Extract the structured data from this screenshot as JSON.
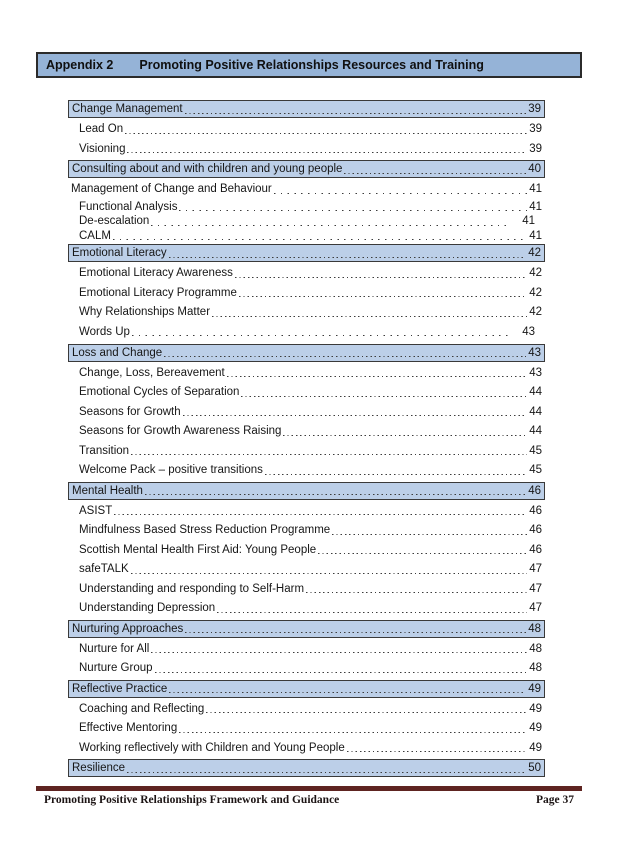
{
  "colors": {
    "header_fill": "#95B3D7",
    "row_highlight_fill": "#BCCFE8",
    "box_border": "#3a3a3a",
    "footer_rule": "#5E2421",
    "text": "#161616"
  },
  "header": {
    "label": "Appendix 2",
    "title": "Promoting Positive Relationships Resources and Training"
  },
  "toc": [
    {
      "text": "Change Management",
      "page": "39",
      "level": 1,
      "highlighted": true
    },
    {
      "text": "Lead On",
      "page": "39",
      "level": 2
    },
    {
      "text": "Visioning",
      "page": "39",
      "level": 2
    },
    {
      "text": "Consulting about and with children and young people",
      "page": "40",
      "level": 1,
      "highlighted": true
    },
    {
      "text": "Management of Change and Behaviour",
      "page": "41",
      "level": 1,
      "leader": "spaced"
    },
    {
      "text": "Functional Analysis",
      "page": "41",
      "level": 2,
      "leader": "spaced",
      "tight": true
    },
    {
      "text": "De-escalation",
      "page": "41",
      "level": 2,
      "leader": "spaced",
      "tight": true,
      "num_offset": true
    },
    {
      "text": "CALM",
      "page": "41",
      "level": 2,
      "leader": "spaced",
      "tight": true
    },
    {
      "text": "Emotional Literacy",
      "page": "42",
      "level": 1,
      "highlighted": true
    },
    {
      "text": "Emotional Literacy Awareness",
      "page": "42",
      "level": 2
    },
    {
      "text": "Emotional Literacy Programme",
      "page": "42",
      "level": 2
    },
    {
      "text": "Why Relationships Matter",
      "page": "42",
      "level": 2
    },
    {
      "text": "Words Up",
      "page": "43",
      "level": 2,
      "leader": "spaced",
      "num_offset": true
    },
    {
      "text": "Loss and Change",
      "page": "43",
      "level": 1,
      "highlighted": true,
      "gap_before": true
    },
    {
      "text": "Change, Loss, Bereavement",
      "page": "43",
      "level": 2
    },
    {
      "text": "Emotional Cycles of Separation",
      "page": "44",
      "level": 2
    },
    {
      "text": "Seasons for Growth",
      "page": "44",
      "level": 2
    },
    {
      "text": "Seasons for Growth Awareness Raising",
      "page": "44",
      "level": 2
    },
    {
      "text": "Transition",
      "page": "45",
      "level": 2
    },
    {
      "text": "Welcome Pack – positive transitions",
      "page": "45",
      "level": 2
    },
    {
      "text": "Mental Health",
      "page": "46",
      "level": 1,
      "highlighted": true
    },
    {
      "text": "ASIST",
      "page": "46",
      "level": 2
    },
    {
      "text": "Mindfulness Based Stress Reduction Programme",
      "page": "46",
      "level": 2
    },
    {
      "text": "Scottish Mental Health First Aid: Young People",
      "page": "46",
      "level": 2
    },
    {
      "text": "safeTALK",
      "page": "47",
      "level": 2
    },
    {
      "text": "Understanding and responding to Self-Harm",
      "page": "47",
      "level": 2
    },
    {
      "text": "Understanding Depression",
      "page": "47",
      "level": 2
    },
    {
      "text": "Nurturing Approaches",
      "page": "48",
      "level": 1,
      "highlighted": true
    },
    {
      "text": "Nurture for All",
      "page": "48",
      "level": 2
    },
    {
      "text": "Nurture Group",
      "page": "48",
      "level": 2
    },
    {
      "text": "Reflective Practice",
      "page": "49",
      "level": 1,
      "highlighted": true
    },
    {
      "text": "Coaching and Reflecting",
      "page": "49",
      "level": 2
    },
    {
      "text": "Effective Mentoring",
      "page": "49",
      "level": 2
    },
    {
      "text": "Working reflectively with Children and Young People",
      "page": "49",
      "level": 2
    },
    {
      "text": "Resilience",
      "page": "50",
      "level": 1,
      "highlighted": true
    }
  ],
  "footer": {
    "left": "Promoting Positive Relationships Framework and Guidance",
    "right": "Page 37"
  }
}
